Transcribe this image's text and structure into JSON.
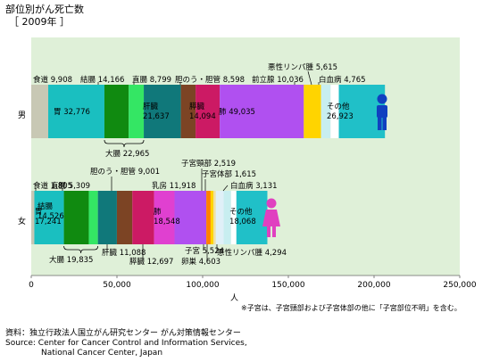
{
  "page": {
    "title": "部位別がん死亡数",
    "year": "［ 2009年 ］",
    "note": "※子宮は、子宮頸部および子宮体部の他に「子宮部位不明」を含む。",
    "source_jp": "資料：独立行政法人国立がん研究センター がん対策情報センター",
    "source_en1": "Source:  Center for Cancer Control and Information Services,",
    "source_en2": "National Cancer Center, Japan"
  },
  "colors": {
    "plot_bg": "#dff0d8",
    "male_icon": "#1040c0",
    "female_icon": "#e040c0",
    "bracket": "#000000"
  },
  "chart_data": {
    "type": "bar",
    "orientation": "horizontal",
    "stacked": true,
    "xlabel": "人",
    "xlim": [
      0,
      250000
    ],
    "xticks": [
      0,
      50000,
      100000,
      150000,
      200000,
      250000
    ],
    "xtick_labels": [
      "0",
      "50,000",
      "100,000",
      "150,000",
      "200,000",
      "250,000"
    ],
    "categories": [
      "男",
      "女"
    ],
    "series": [
      {
        "category": "男",
        "segments": [
          {
            "label": "食道 9,908",
            "value": 9908,
            "color": "#c8c8b4"
          },
          {
            "label": "胃 32,776",
            "value": 32776,
            "color": "#1abfc0"
          },
          {
            "label": "結腸 14,166",
            "value": 14166,
            "color": "#108a10"
          },
          {
            "label": "直腸 8,799",
            "value": 8799,
            "color": "#34e664"
          },
          {
            "label": "肝臓 21,637",
            "value": 21637,
            "color": "#10787a"
          },
          {
            "label": "胆のう・胆管 8,598",
            "value": 8598,
            "color": "#7c4424"
          },
          {
            "label": "膵臓 14,094",
            "value": 14094,
            "color": "#cc1a64"
          },
          {
            "label": "肺 49,035",
            "value": 49035,
            "color": "#b050f0"
          },
          {
            "label": "前立腺 10,036",
            "value": 10036,
            "color": "#ffd400"
          },
          {
            "label": "悪性リンパ腫 5,615",
            "value": 5615,
            "color": "#c8eef0"
          },
          {
            "label": "白血病 4,765",
            "value": 4765,
            "color": "#ffffff"
          },
          {
            "label": "その他 26,923",
            "value": 26923,
            "color": "#20c0c8"
          }
        ]
      },
      {
        "category": "女",
        "segments": [
          {
            "label": "食道 1,805",
            "value": 1805,
            "color": "#c8c8b4"
          },
          {
            "label": "胃 17,241",
            "value": 17241,
            "color": "#1abfc0"
          },
          {
            "label": "結腸 14,526",
            "value": 14526,
            "color": "#108a10"
          },
          {
            "label": "直腸 5,309",
            "value": 5309,
            "color": "#34e664"
          },
          {
            "label": "肝臓 11,088",
            "value": 11088,
            "color": "#10787a"
          },
          {
            "label": "胆のう・胆管 9,001",
            "value": 9001,
            "color": "#7c4424"
          },
          {
            "label": "膵臓 12,697",
            "value": 12697,
            "color": "#cc1a64"
          },
          {
            "label": "乳房 11,918",
            "value": 11918,
            "color": "#e040d0"
          },
          {
            "label": "肺 18,548",
            "value": 18548,
            "color": "#b050f0"
          },
          {
            "label": "子宮頸部 2,519",
            "value": 2519,
            "color": "#ff8000"
          },
          {
            "label": "子宮体部 1,615",
            "value": 1615,
            "color": "#ffd400"
          },
          {
            "label": "子宮 5,524",
            "value": 1390,
            "color": "#f0e0a0"
          },
          {
            "label": "卵巣 4,603",
            "value": 4603,
            "color": "#e0f0f8"
          },
          {
            "label": "悪性リンパ腫 4,294",
            "value": 4294,
            "color": "#c8eef0"
          },
          {
            "label": "白血病 3,131",
            "value": 3131,
            "color": "#ffffff"
          },
          {
            "label": "その他 18,068",
            "value": 18068,
            "color": "#20c0c8"
          }
        ]
      }
    ],
    "brackets": [
      {
        "category": "男",
        "label": "大腸 22,965",
        "from": 2,
        "to": 3
      },
      {
        "category": "女",
        "label": "大腸 19,835",
        "from": 2,
        "to": 3
      }
    ]
  }
}
